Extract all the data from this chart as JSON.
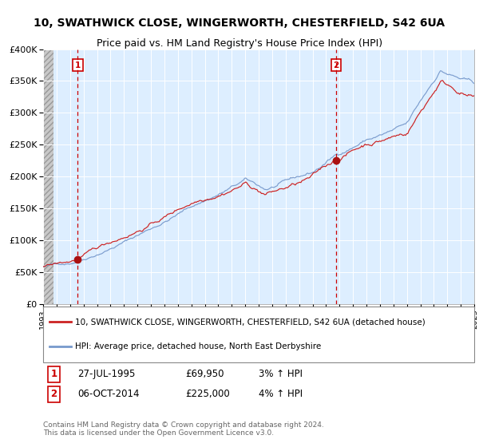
{
  "title1": "10, SWATHWICK CLOSE, WINGERWORTH, CHESTERFIELD, S42 6UA",
  "title2": "Price paid vs. HM Land Registry's House Price Index (HPI)",
  "legend_line1": "10, SWATHWICK CLOSE, WINGERWORTH, CHESTERFIELD, S42 6UA (detached house)",
  "legend_line2": "HPI: Average price, detached house, North East Derbyshire",
  "transaction1_label": "1",
  "transaction1_date": "27-JUL-1995",
  "transaction1_price": "£69,950",
  "transaction1_hpi": "3% ↑ HPI",
  "transaction2_label": "2",
  "transaction2_date": "06-OCT-2014",
  "transaction2_price": "£225,000",
  "transaction2_hpi": "4% ↑ HPI",
  "transaction1_year": 1995.57,
  "transaction1_value": 69950,
  "transaction2_year": 2014.76,
  "transaction2_value": 225000,
  "hpi_color": "#7799cc",
  "price_color": "#cc2222",
  "vline_color": "#cc0000",
  "dot_color": "#aa1111",
  "plot_bg": "#ddeeff",
  "grid_color": "#ffffff",
  "ylim": [
    0,
    400000
  ],
  "yticks": [
    0,
    50000,
    100000,
    150000,
    200000,
    250000,
    300000,
    350000,
    400000
  ],
  "start_year": 1993,
  "end_year": 2025,
  "footnote": "Contains HM Land Registry data © Crown copyright and database right 2024.\nThis data is licensed under the Open Government Licence v3.0."
}
